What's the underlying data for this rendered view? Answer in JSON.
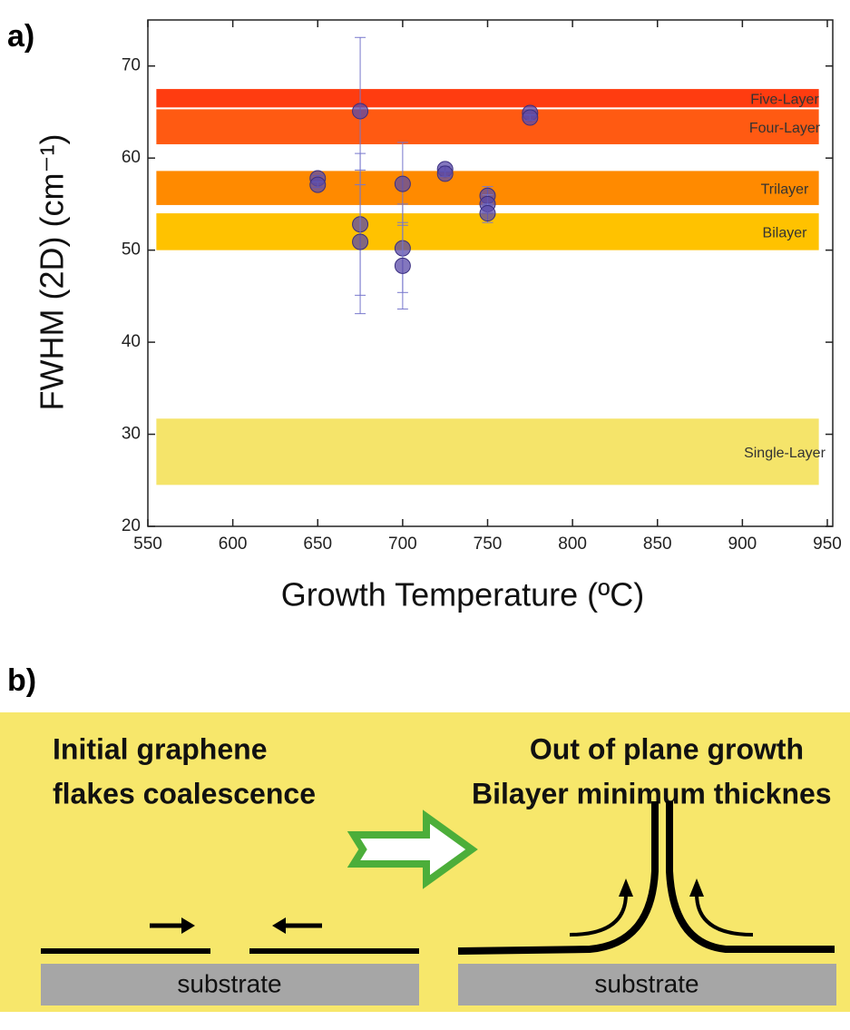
{
  "chart_data": {
    "type": "scatter",
    "panel_label": "a)",
    "xlabel": "Growth Temperature (ºC)",
    "ylabel": "FWHM (2D) (cm⁻¹)",
    "xlim": [
      550,
      950
    ],
    "ylim": [
      20,
      75
    ],
    "xticks": [
      550,
      600,
      650,
      700,
      750,
      800,
      850,
      900,
      950
    ],
    "yticks": [
      20,
      30,
      40,
      50,
      60,
      70
    ],
    "bands": [
      {
        "name": "Five-Layer",
        "range": [
          65.5,
          67.5
        ],
        "color": "#ff3c10"
      },
      {
        "name": "Four-Layer",
        "range": [
          61.5,
          65.3
        ],
        "color": "#ff5a12"
      },
      {
        "name": "Trilayer",
        "range": [
          54.9,
          58.6
        ],
        "color": "#ff8a00"
      },
      {
        "name": "Bilayer",
        "range": [
          50,
          54
        ],
        "color": "#ffc200"
      },
      {
        "name": "Single-Layer",
        "range": [
          24.5,
          31.7
        ],
        "color": "#f5e46a"
      }
    ],
    "band_xlim": [
      555,
      945
    ],
    "series": [
      {
        "color": "#5a4aa8",
        "x": [
          650,
          650,
          675,
          675,
          675,
          700,
          700,
          700,
          725,
          725,
          750,
          750,
          750,
          775,
          775
        ],
        "values": [
          57.8,
          57.1,
          65.1,
          52.8,
          50.9,
          57.2,
          50.2,
          48.3,
          58.8,
          58.3,
          55.9,
          55.0,
          54.0,
          64.9,
          64.4
        ],
        "yerr": [
          0.3,
          0.3,
          8,
          7.7,
          7.8,
          4.5,
          4.8,
          4.7,
          0.3,
          0.3,
          1,
          1,
          1,
          0.3,
          0.3
        ]
      }
    ]
  },
  "panel_b": {
    "label": "b)",
    "left_text": [
      "Initial graphene",
      "flakes coalescence"
    ],
    "right_text": [
      "Out of plane growth",
      "Bilayer minimum thicknes"
    ],
    "substrate_left": "substrate",
    "substrate_right": "substrate"
  }
}
